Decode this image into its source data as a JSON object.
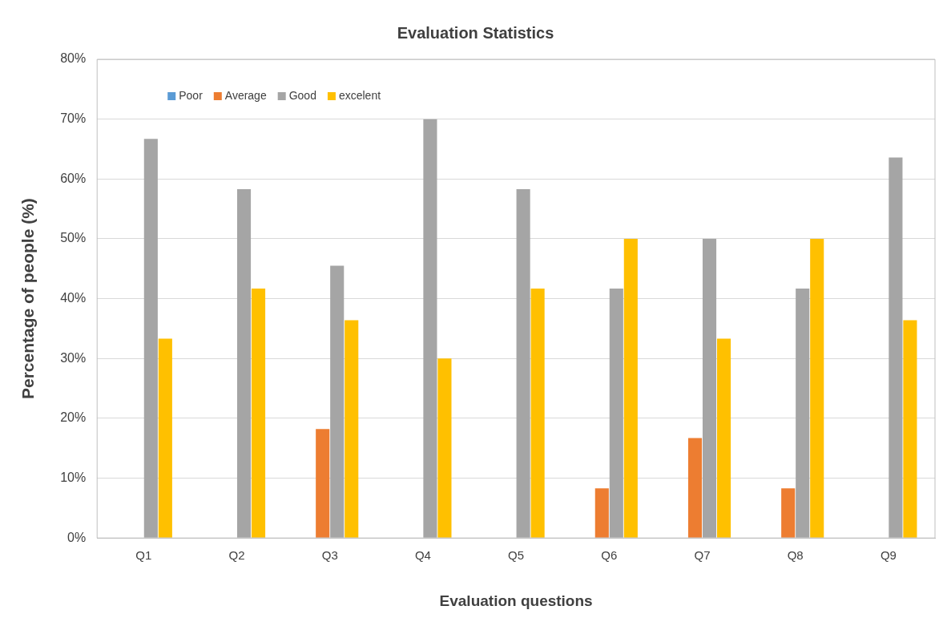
{
  "chart_data": {
    "type": "bar",
    "title": "Evaluation Statistics",
    "xlabel": "Evaluation questions",
    "ylabel": "Percentage of people (%)",
    "categories": [
      "Q1",
      "Q2",
      "Q3",
      "Q4",
      "Q5",
      "Q6",
      "Q7",
      "Q8",
      "Q9"
    ],
    "series": [
      {
        "name": "Poor",
        "color": "#5b9bd5",
        "values": [
          0,
          0,
          0,
          0,
          0,
          0,
          0,
          0,
          0
        ]
      },
      {
        "name": "Average",
        "color": "#ed7d31",
        "values": [
          0,
          0,
          18.2,
          0,
          0,
          8.3,
          16.7,
          8.3,
          0
        ]
      },
      {
        "name": "Good",
        "color": "#a5a5a5",
        "values": [
          66.7,
          58.3,
          45.5,
          70,
          58.3,
          41.7,
          50,
          41.7,
          63.6
        ]
      },
      {
        "name": "excelent",
        "color": "#ffc000",
        "values": [
          33.3,
          41.7,
          36.4,
          30,
          41.7,
          50,
          33.3,
          50,
          36.4
        ]
      }
    ],
    "ylim": [
      0,
      80
    ],
    "yticks": [
      {
        "value": 0,
        "label": "0%"
      },
      {
        "value": 10,
        "label": "10%"
      },
      {
        "value": 20,
        "label": "20%"
      },
      {
        "value": 30,
        "label": "30%"
      },
      {
        "value": 40,
        "label": "40%"
      },
      {
        "value": 50,
        "label": "50%"
      },
      {
        "value": 60,
        "label": "60%"
      },
      {
        "value": 70,
        "label": "70%"
      },
      {
        "value": 80,
        "label": "80%"
      }
    ],
    "grid": "y",
    "legend": "top left"
  }
}
